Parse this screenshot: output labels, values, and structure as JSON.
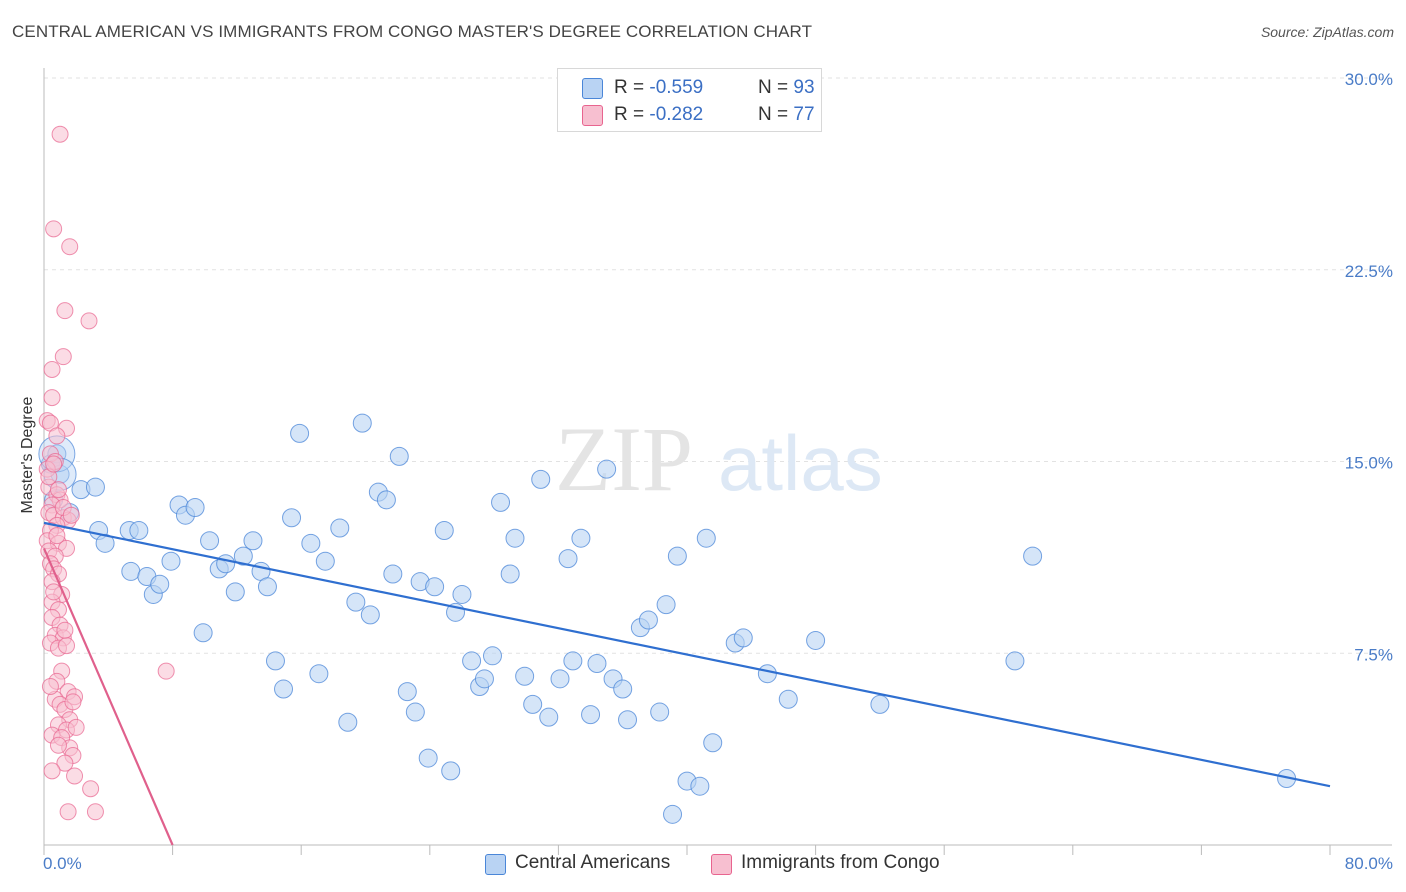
{
  "title": "CENTRAL AMERICAN VS IMMIGRANTS FROM CONGO MASTER'S DEGREE CORRELATION CHART",
  "source": "Source: ZipAtlas.com",
  "watermark": {
    "zip": "ZIP",
    "atlas": "atlas"
  },
  "colors": {
    "blue": "#4a86d8",
    "blue_fill": "#b9d3f3",
    "pink": "#e8648f",
    "pink_fill": "#f7bfd0",
    "grid": "#e2e2e2",
    "tick_text": "#4a7cc7"
  },
  "legend": {
    "rows": [
      {
        "r_label": "R = ",
        "r_value": "-0.559",
        "n_label": "N = ",
        "n_value": "93"
      },
      {
        "r_label": "R = ",
        "r_value": "-0.282",
        "n_label": "N = ",
        "n_value": "77"
      }
    ]
  },
  "chart_data": {
    "type": "scatter",
    "title": "CENTRAL AMERICAN VS IMMIGRANTS FROM CONGO MASTER'S DEGREE CORRELATION CHART",
    "xlabel": "",
    "ylabel": "Master's Degree",
    "xlim": [
      0,
      80
    ],
    "ylim": [
      0,
      30
    ],
    "x_tick_labels": [
      "0.0%",
      "80.0%"
    ],
    "y_ticks": [
      7.5,
      15.0,
      22.5,
      30.0
    ],
    "y_tick_labels": [
      "7.5%",
      "15.0%",
      "22.5%",
      "30.0%"
    ],
    "grid": true,
    "legend_position": "top-center",
    "series": [
      {
        "name": "Central Americans",
        "color": "#4a86d8",
        "regression": {
          "x": [
            0,
            80
          ],
          "y": [
            12.6,
            2.3
          ]
        },
        "points": [
          [
            0.4,
            14.9
          ],
          [
            0.8,
            15.3
          ],
          [
            1.0,
            14.5
          ],
          [
            1.6,
            13.0
          ],
          [
            2.3,
            13.9
          ],
          [
            3.2,
            14.0
          ],
          [
            3.4,
            12.3
          ],
          [
            3.8,
            11.8
          ],
          [
            5.3,
            12.3
          ],
          [
            5.9,
            12.3
          ],
          [
            5.4,
            10.7
          ],
          [
            6.4,
            10.5
          ],
          [
            6.8,
            9.8
          ],
          [
            7.2,
            10.2
          ],
          [
            7.9,
            11.1
          ],
          [
            8.4,
            13.3
          ],
          [
            8.8,
            12.9
          ],
          [
            9.4,
            13.2
          ],
          [
            9.9,
            8.3
          ],
          [
            10.3,
            11.9
          ],
          [
            10.9,
            10.8
          ],
          [
            11.3,
            11.0
          ],
          [
            11.9,
            9.9
          ],
          [
            12.4,
            11.3
          ],
          [
            13.0,
            11.9
          ],
          [
            13.5,
            10.7
          ],
          [
            13.9,
            10.1
          ],
          [
            14.4,
            7.2
          ],
          [
            14.9,
            6.1
          ],
          [
            15.4,
            12.8
          ],
          [
            15.9,
            16.1
          ],
          [
            16.6,
            11.8
          ],
          [
            17.1,
            6.7
          ],
          [
            17.5,
            11.1
          ],
          [
            18.4,
            12.4
          ],
          [
            18.9,
            4.8
          ],
          [
            19.4,
            9.5
          ],
          [
            19.8,
            16.5
          ],
          [
            20.3,
            9.0
          ],
          [
            20.8,
            13.8
          ],
          [
            21.3,
            13.5
          ],
          [
            21.7,
            10.6
          ],
          [
            22.1,
            15.2
          ],
          [
            22.6,
            6.0
          ],
          [
            23.1,
            5.2
          ],
          [
            23.4,
            10.3
          ],
          [
            23.9,
            3.4
          ],
          [
            24.3,
            10.1
          ],
          [
            24.9,
            12.3
          ],
          [
            25.3,
            2.9
          ],
          [
            25.6,
            9.1
          ],
          [
            26.0,
            9.8
          ],
          [
            26.6,
            7.2
          ],
          [
            27.1,
            6.2
          ],
          [
            27.4,
            6.5
          ],
          [
            27.9,
            7.4
          ],
          [
            28.4,
            13.4
          ],
          [
            29.0,
            10.6
          ],
          [
            29.3,
            12.0
          ],
          [
            29.9,
            6.6
          ],
          [
            30.4,
            5.5
          ],
          [
            30.9,
            14.3
          ],
          [
            31.4,
            5.0
          ],
          [
            32.1,
            6.5
          ],
          [
            32.6,
            11.2
          ],
          [
            32.9,
            7.2
          ],
          [
            33.4,
            12.0
          ],
          [
            34.0,
            5.1
          ],
          [
            34.4,
            7.1
          ],
          [
            35.0,
            14.7
          ],
          [
            35.4,
            6.5
          ],
          [
            36.0,
            6.1
          ],
          [
            36.3,
            4.9
          ],
          [
            37.1,
            8.5
          ],
          [
            37.6,
            8.8
          ],
          [
            38.3,
            5.2
          ],
          [
            38.7,
            9.4
          ],
          [
            39.4,
            11.3
          ],
          [
            39.1,
            1.2
          ],
          [
            40.0,
            2.5
          ],
          [
            40.8,
            2.3
          ],
          [
            41.2,
            12.0
          ],
          [
            41.6,
            4.0
          ],
          [
            43.0,
            7.9
          ],
          [
            43.5,
            8.1
          ],
          [
            45.0,
            6.7
          ],
          [
            46.3,
            5.7
          ],
          [
            48.0,
            8.0
          ],
          [
            52.0,
            5.5
          ],
          [
            60.4,
            7.2
          ],
          [
            61.5,
            11.3
          ],
          [
            77.3,
            2.6
          ],
          [
            0.6,
            13.5
          ]
        ],
        "sizes": {
          "big": [
            [
              0.8,
              15.3,
              18
            ],
            [
              1.0,
              14.5,
              16
            ]
          ]
        }
      },
      {
        "name": "Immigrants from Congo",
        "color": "#e8648f",
        "regression": {
          "x": [
            0,
            8
          ],
          "y": [
            11.6,
            0.0
          ]
        },
        "points": [
          [
            1.0,
            27.8
          ],
          [
            0.6,
            24.1
          ],
          [
            1.6,
            23.4
          ],
          [
            1.3,
            20.9
          ],
          [
            2.8,
            20.5
          ],
          [
            1.2,
            19.1
          ],
          [
            0.5,
            18.6
          ],
          [
            0.5,
            17.5
          ],
          [
            0.2,
            16.6
          ],
          [
            0.4,
            16.5
          ],
          [
            1.4,
            16.3
          ],
          [
            0.8,
            16.0
          ],
          [
            0.4,
            15.3
          ],
          [
            0.7,
            15.0
          ],
          [
            0.2,
            14.7
          ],
          [
            0.3,
            14.0
          ],
          [
            0.8,
            13.7
          ],
          [
            1.0,
            13.5
          ],
          [
            0.5,
            13.3
          ],
          [
            0.3,
            13.0
          ],
          [
            0.6,
            12.9
          ],
          [
            1.2,
            12.8
          ],
          [
            1.5,
            12.7
          ],
          [
            0.8,
            12.5
          ],
          [
            0.4,
            12.3
          ],
          [
            0.2,
            11.9
          ],
          [
            0.9,
            11.8
          ],
          [
            1.4,
            11.6
          ],
          [
            0.3,
            11.5
          ],
          [
            0.7,
            11.3
          ],
          [
            0.4,
            11.0
          ],
          [
            0.6,
            10.8
          ],
          [
            0.9,
            10.6
          ],
          [
            0.5,
            10.3
          ],
          [
            1.1,
            9.8
          ],
          [
            0.5,
            9.5
          ],
          [
            0.9,
            9.2
          ],
          [
            0.5,
            8.9
          ],
          [
            1.0,
            8.6
          ],
          [
            0.7,
            8.2
          ],
          [
            1.2,
            8.1
          ],
          [
            0.4,
            7.9
          ],
          [
            0.9,
            7.7
          ],
          [
            1.4,
            7.8
          ],
          [
            1.1,
            6.8
          ],
          [
            0.8,
            6.4
          ],
          [
            1.5,
            6.0
          ],
          [
            1.9,
            5.8
          ],
          [
            0.7,
            5.7
          ],
          [
            1.0,
            5.5
          ],
          [
            1.3,
            5.3
          ],
          [
            1.6,
            4.9
          ],
          [
            0.9,
            4.7
          ],
          [
            1.4,
            4.5
          ],
          [
            0.5,
            4.3
          ],
          [
            1.1,
            4.2
          ],
          [
            1.6,
            3.8
          ],
          [
            1.8,
            3.5
          ],
          [
            1.3,
            3.2
          ],
          [
            1.9,
            2.7
          ],
          [
            2.9,
            2.2
          ],
          [
            1.5,
            1.3
          ],
          [
            3.2,
            1.3
          ],
          [
            0.3,
            14.4
          ],
          [
            0.6,
            14.9
          ],
          [
            0.9,
            13.9
          ],
          [
            7.6,
            6.8
          ],
          [
            1.8,
            5.6
          ],
          [
            1.2,
            13.2
          ],
          [
            0.8,
            12.1
          ],
          [
            1.7,
            12.9
          ],
          [
            0.6,
            9.9
          ],
          [
            1.3,
            8.4
          ],
          [
            0.4,
            6.2
          ],
          [
            0.9,
            3.9
          ],
          [
            2.0,
            4.6
          ],
          [
            0.5,
            2.9
          ]
        ]
      }
    ]
  },
  "bottom_legend": [
    {
      "label": "Central Americans"
    },
    {
      "label": "Immigrants from Congo"
    }
  ]
}
